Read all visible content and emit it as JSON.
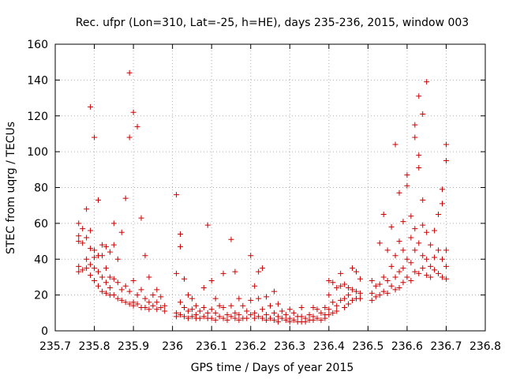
{
  "chart_data": {
    "type": "scatter",
    "title": "Rec. ufpr (Lon=310, Lat=-25, h=HE), days 235-236, 2015, window 003",
    "xlabel": "GPS time / Days of year 2015",
    "ylabel": "STEC from uqrg / TECUs",
    "xlim": [
      235.7,
      236.8
    ],
    "ylim": [
      0,
      160
    ],
    "xticks": [
      "235.7",
      "235.8",
      "235.9",
      "236",
      "236.1",
      "236.2",
      "236.3",
      "236.4",
      "236.5",
      "236.6",
      "236.7",
      "236.8"
    ],
    "yticks": [
      "0",
      "20",
      "40",
      "60",
      "80",
      "100",
      "120",
      "140",
      "160"
    ],
    "marker": "+",
    "color": "#cc0000",
    "points": [
      [
        235.76,
        60
      ],
      [
        235.76,
        53
      ],
      [
        235.76,
        50
      ],
      [
        235.76,
        36
      ],
      [
        235.76,
        33
      ],
      [
        235.77,
        57
      ],
      [
        235.77,
        49
      ],
      [
        235.77,
        34
      ],
      [
        235.78,
        68
      ],
      [
        235.78,
        52
      ],
      [
        235.78,
        40
      ],
      [
        235.78,
        35
      ],
      [
        235.79,
        125
      ],
      [
        235.79,
        56
      ],
      [
        235.79,
        46
      ],
      [
        235.79,
        37
      ],
      [
        235.79,
        31
      ],
      [
        235.8,
        108
      ],
      [
        235.8,
        45
      ],
      [
        235.8,
        41
      ],
      [
        235.8,
        35
      ],
      [
        235.8,
        28
      ],
      [
        235.81,
        73
      ],
      [
        235.81,
        42
      ],
      [
        235.81,
        33
      ],
      [
        235.81,
        25
      ],
      [
        235.82,
        48
      ],
      [
        235.82,
        42
      ],
      [
        235.82,
        30
      ],
      [
        235.82,
        22
      ],
      [
        235.83,
        47
      ],
      [
        235.83,
        35
      ],
      [
        235.83,
        27
      ],
      [
        235.83,
        21
      ],
      [
        235.84,
        44
      ],
      [
        235.84,
        30
      ],
      [
        235.84,
        24
      ],
      [
        235.84,
        20
      ],
      [
        235.85,
        60
      ],
      [
        235.85,
        48
      ],
      [
        235.85,
        29
      ],
      [
        235.85,
        20
      ],
      [
        235.86,
        40
      ],
      [
        235.86,
        27
      ],
      [
        235.86,
        18
      ],
      [
        235.87,
        55
      ],
      [
        235.87,
        23
      ],
      [
        235.87,
        17
      ],
      [
        235.88,
        74
      ],
      [
        235.88,
        25
      ],
      [
        235.88,
        16
      ],
      [
        235.89,
        144
      ],
      [
        235.89,
        108
      ],
      [
        235.89,
        22
      ],
      [
        235.89,
        15
      ],
      [
        235.9,
        122
      ],
      [
        235.9,
        28
      ],
      [
        235.9,
        16
      ],
      [
        235.9,
        14
      ],
      [
        235.91,
        114
      ],
      [
        235.91,
        20
      ],
      [
        235.91,
        15
      ],
      [
        235.92,
        63
      ],
      [
        235.92,
        23
      ],
      [
        235.92,
        13
      ],
      [
        235.93,
        42
      ],
      [
        235.93,
        18
      ],
      [
        235.93,
        13
      ],
      [
        235.94,
        30
      ],
      [
        235.94,
        16
      ],
      [
        235.94,
        12
      ],
      [
        235.95,
        20
      ],
      [
        235.95,
        14
      ],
      [
        235.96,
        23
      ],
      [
        235.96,
        16
      ],
      [
        235.96,
        12
      ],
      [
        235.97,
        19
      ],
      [
        235.97,
        13
      ],
      [
        235.98,
        14
      ],
      [
        235.98,
        11
      ],
      [
        236.01,
        76
      ],
      [
        236.01,
        32
      ],
      [
        236.01,
        10
      ],
      [
        236.01,
        8
      ],
      [
        236.02,
        54
      ],
      [
        236.02,
        47
      ],
      [
        236.02,
        16
      ],
      [
        236.02,
        9
      ],
      [
        236.03,
        29
      ],
      [
        236.03,
        13
      ],
      [
        236.03,
        8
      ],
      [
        236.04,
        20
      ],
      [
        236.04,
        11
      ],
      [
        236.04,
        7
      ],
      [
        236.05,
        18
      ],
      [
        236.05,
        12
      ],
      [
        236.05,
        8
      ],
      [
        236.06,
        14
      ],
      [
        236.06,
        9
      ],
      [
        236.06,
        7
      ],
      [
        236.07,
        11
      ],
      [
        236.07,
        7
      ],
      [
        236.08,
        24
      ],
      [
        236.08,
        13
      ],
      [
        236.08,
        8
      ],
      [
        236.09,
        59
      ],
      [
        236.09,
        10
      ],
      [
        236.09,
        7
      ],
      [
        236.1,
        28
      ],
      [
        236.1,
        12
      ],
      [
        236.1,
        7
      ],
      [
        236.11,
        18
      ],
      [
        236.11,
        10
      ],
      [
        236.11,
        6
      ],
      [
        236.12,
        14
      ],
      [
        236.12,
        8
      ],
      [
        236.13,
        32
      ],
      [
        236.13,
        13
      ],
      [
        236.13,
        7
      ],
      [
        236.14,
        9
      ],
      [
        236.14,
        6
      ],
      [
        236.15,
        51
      ],
      [
        236.15,
        14
      ],
      [
        236.15,
        8
      ],
      [
        236.16,
        33
      ],
      [
        236.16,
        10
      ],
      [
        236.16,
        7
      ],
      [
        236.17,
        18
      ],
      [
        236.17,
        9
      ],
      [
        236.17,
        6
      ],
      [
        236.18,
        14
      ],
      [
        236.18,
        7
      ],
      [
        236.19,
        11
      ],
      [
        236.19,
        7
      ],
      [
        236.2,
        42
      ],
      [
        236.2,
        17
      ],
      [
        236.2,
        9
      ],
      [
        236.21,
        25
      ],
      [
        236.21,
        10
      ],
      [
        236.21,
        7
      ],
      [
        236.22,
        33
      ],
      [
        236.22,
        18
      ],
      [
        236.22,
        8
      ],
      [
        236.23,
        35
      ],
      [
        236.23,
        12
      ],
      [
        236.23,
        7
      ],
      [
        236.24,
        19
      ],
      [
        236.24,
        9
      ],
      [
        236.24,
        6
      ],
      [
        236.25,
        14
      ],
      [
        236.25,
        7
      ],
      [
        236.26,
        22
      ],
      [
        236.26,
        10
      ],
      [
        236.26,
        6
      ],
      [
        236.27,
        15
      ],
      [
        236.27,
        8
      ],
      [
        236.27,
        5
      ],
      [
        236.28,
        11
      ],
      [
        236.28,
        7
      ],
      [
        236.29,
        9
      ],
      [
        236.29,
        6
      ],
      [
        236.3,
        12
      ],
      [
        236.3,
        7
      ],
      [
        236.3,
        5
      ],
      [
        236.31,
        10
      ],
      [
        236.31,
        6
      ],
      [
        236.32,
        8
      ],
      [
        236.32,
        5
      ],
      [
        236.33,
        13
      ],
      [
        236.33,
        8
      ],
      [
        236.33,
        5
      ],
      [
        236.34,
        7
      ],
      [
        236.34,
        5
      ],
      [
        236.35,
        9
      ],
      [
        236.35,
        6
      ],
      [
        236.36,
        13
      ],
      [
        236.36,
        8
      ],
      [
        236.36,
        6
      ],
      [
        236.37,
        12
      ],
      [
        236.37,
        7
      ],
      [
        236.38,
        10
      ],
      [
        236.38,
        6
      ],
      [
        236.39,
        13
      ],
      [
        236.39,
        9
      ],
      [
        236.39,
        7
      ],
      [
        236.4,
        28
      ],
      [
        236.4,
        20
      ],
      [
        236.4,
        12
      ],
      [
        236.4,
        9
      ],
      [
        236.41,
        27
      ],
      [
        236.41,
        16
      ],
      [
        236.41,
        10
      ],
      [
        236.42,
        24
      ],
      [
        236.42,
        14
      ],
      [
        236.42,
        11
      ],
      [
        236.43,
        32
      ],
      [
        236.43,
        25
      ],
      [
        236.43,
        17
      ],
      [
        236.44,
        26
      ],
      [
        236.44,
        18
      ],
      [
        236.44,
        13
      ],
      [
        236.45,
        24
      ],
      [
        236.45,
        20
      ],
      [
        236.45,
        15
      ],
      [
        236.46,
        35
      ],
      [
        236.46,
        23
      ],
      [
        236.46,
        17
      ],
      [
        236.47,
        33
      ],
      [
        236.47,
        22
      ],
      [
        236.47,
        18
      ],
      [
        236.48,
        29
      ],
      [
        236.48,
        21
      ],
      [
        236.48,
        18
      ],
      [
        236.51,
        28
      ],
      [
        236.51,
        21
      ],
      [
        236.51,
        17
      ],
      [
        236.52,
        25
      ],
      [
        236.52,
        19
      ],
      [
        236.53,
        49
      ],
      [
        236.53,
        26
      ],
      [
        236.53,
        20
      ],
      [
        236.54,
        65
      ],
      [
        236.54,
        30
      ],
      [
        236.54,
        22
      ],
      [
        236.55,
        45
      ],
      [
        236.55,
        28
      ],
      [
        236.55,
        21
      ],
      [
        236.56,
        58
      ],
      [
        236.56,
        36
      ],
      [
        236.56,
        25
      ],
      [
        236.57,
        104
      ],
      [
        236.57,
        42
      ],
      [
        236.57,
        30
      ],
      [
        236.57,
        23
      ],
      [
        236.58,
        77
      ],
      [
        236.58,
        50
      ],
      [
        236.58,
        33
      ],
      [
        236.58,
        24
      ],
      [
        236.59,
        61
      ],
      [
        236.59,
        45
      ],
      [
        236.59,
        35
      ],
      [
        236.59,
        27
      ],
      [
        236.6,
        87
      ],
      [
        236.6,
        81
      ],
      [
        236.6,
        40
      ],
      [
        236.6,
        30
      ],
      [
        236.61,
        64
      ],
      [
        236.61,
        52
      ],
      [
        236.61,
        38
      ],
      [
        236.61,
        28
      ],
      [
        236.62,
        115
      ],
      [
        236.62,
        108
      ],
      [
        236.62,
        57
      ],
      [
        236.62,
        45
      ],
      [
        236.62,
        33
      ],
      [
        236.63,
        131
      ],
      [
        236.63,
        98
      ],
      [
        236.63,
        91
      ],
      [
        236.63,
        49
      ],
      [
        236.63,
        32
      ],
      [
        236.64,
        121
      ],
      [
        236.64,
        73
      ],
      [
        236.64,
        59
      ],
      [
        236.64,
        42
      ],
      [
        236.64,
        35
      ],
      [
        236.65,
        139
      ],
      [
        236.65,
        55
      ],
      [
        236.65,
        40
      ],
      [
        236.65,
        31
      ],
      [
        236.66,
        48
      ],
      [
        236.66,
        36
      ],
      [
        236.66,
        30
      ],
      [
        236.67,
        56
      ],
      [
        236.67,
        41
      ],
      [
        236.67,
        34
      ],
      [
        236.68,
        65
      ],
      [
        236.68,
        45
      ],
      [
        236.68,
        32
      ],
      [
        236.69,
        79
      ],
      [
        236.69,
        71
      ],
      [
        236.69,
        40
      ],
      [
        236.69,
        30
      ],
      [
        236.7,
        104
      ],
      [
        236.7,
        95
      ],
      [
        236.7,
        45
      ],
      [
        236.7,
        36
      ],
      [
        236.7,
        29
      ]
    ]
  }
}
